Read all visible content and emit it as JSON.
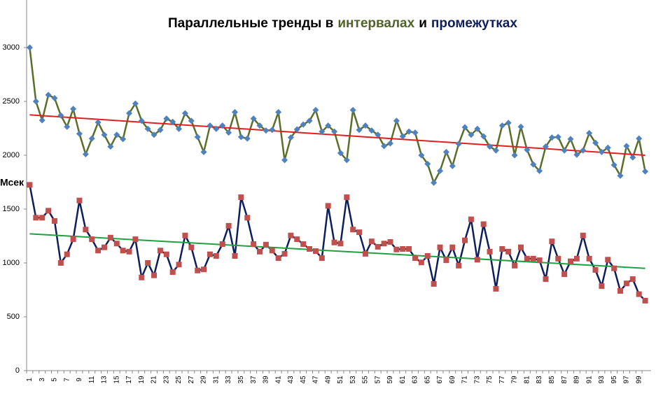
{
  "chart_data": {
    "type": "line",
    "title": [
      {
        "text": "Параллельные тренды в",
        "color": "#000000"
      },
      {
        "text": "интервалах",
        "color": "#4f6228"
      },
      {
        "text": "и",
        "color": "#000000"
      },
      {
        "text": "промежутках",
        "color": "#0f1f5c"
      }
    ],
    "ylabel": "Мсек",
    "categories": [
      1,
      null,
      3,
      null,
      5,
      null,
      7,
      null,
      9,
      null,
      11,
      null,
      13,
      null,
      15,
      null,
      17,
      null,
      19,
      null,
      21,
      null,
      23,
      null,
      25,
      null,
      27,
      null,
      29,
      null,
      31,
      null,
      33,
      null,
      35,
      null,
      37,
      null,
      39,
      null,
      41,
      null,
      43,
      null,
      45,
      null,
      47,
      null,
      49,
      null,
      51,
      null,
      53,
      null,
      55,
      null,
      57,
      null,
      59,
      null,
      61,
      null,
      63,
      null,
      65,
      null,
      67,
      null,
      69,
      null,
      71,
      null,
      73,
      null,
      75,
      null,
      77,
      null,
      79,
      null,
      81,
      null,
      83,
      null,
      85,
      null,
      87,
      null,
      89,
      null,
      91,
      null,
      93,
      null,
      95,
      null,
      97,
      null,
      99,
      null
    ],
    "series": [
      {
        "color": "#5a6e2a",
        "marker": "diamond",
        "marker_color": "#4f81bd",
        "values": [
          3000,
          2500,
          2325,
          2560,
          2530,
          2370,
          2265,
          2430,
          2200,
          2010,
          2155,
          2305,
          2190,
          2080,
          2190,
          2150,
          2390,
          2480,
          2320,
          2245,
          2190,
          2235,
          2340,
          2310,
          2245,
          2390,
          2320,
          2170,
          2030,
          2275,
          2245,
          2275,
          2210,
          2400,
          2170,
          2155,
          2340,
          2275,
          2230,
          2235,
          2400,
          1955,
          2165,
          2240,
          2285,
          2320,
          2420,
          2220,
          2275,
          2220,
          2020,
          1955,
          2420,
          2235,
          2275,
          2230,
          2190,
          2085,
          2110,
          2320,
          2175,
          2220,
          2210,
          2000,
          1920,
          1745,
          1855,
          2030,
          1900,
          2105,
          2260,
          2190,
          2245,
          2175,
          2080,
          2045,
          2275,
          2300,
          2000,
          2265,
          2050,
          1915,
          1855,
          2080,
          2165,
          2170,
          2045,
          2150,
          2005,
          2045,
          2205,
          2115,
          2030,
          2070,
          1910,
          1810,
          2085,
          1980,
          2155,
          1850
        ]
      },
      {
        "color": "#0d1f5c",
        "marker": "square",
        "marker_color": "#c0504d",
        "values": [
          1725,
          1420,
          1420,
          1485,
          1390,
          1000,
          1080,
          1220,
          1580,
          1310,
          1220,
          1115,
          1145,
          1235,
          1180,
          1115,
          1105,
          1220,
          865,
          1000,
          885,
          1115,
          1080,
          915,
          985,
          1255,
          1145,
          930,
          940,
          1080,
          1065,
          1175,
          1345,
          1065,
          1610,
          1420,
          1175,
          1105,
          1170,
          1115,
          1045,
          1085,
          1255,
          1220,
          1175,
          1130,
          1110,
          1045,
          1530,
          1190,
          1180,
          1610,
          1310,
          1285,
          1085,
          1200,
          1150,
          1180,
          1195,
          1125,
          1130,
          1130,
          1045,
          1005,
          1065,
          805,
          1145,
          1025,
          1145,
          975,
          1210,
          1405,
          1030,
          1360,
          1105,
          760,
          1130,
          1105,
          975,
          1145,
          1040,
          1040,
          1025,
          850,
          1200,
          1040,
          895,
          1015,
          1040,
          1255,
          1040,
          935,
          785,
          1030,
          950,
          740,
          810,
          850,
          710,
          650
        ]
      }
    ],
    "trendlines": [
      {
        "color": "#e02020",
        "from": 2375,
        "to": 2000
      },
      {
        "color": "#20a040",
        "from": 1270,
        "to": 950
      }
    ],
    "ylim": [
      0,
      3000
    ],
    "yticks": [
      0,
      500,
      1000,
      1500,
      2000,
      2500,
      3000
    ],
    "grid": false
  }
}
